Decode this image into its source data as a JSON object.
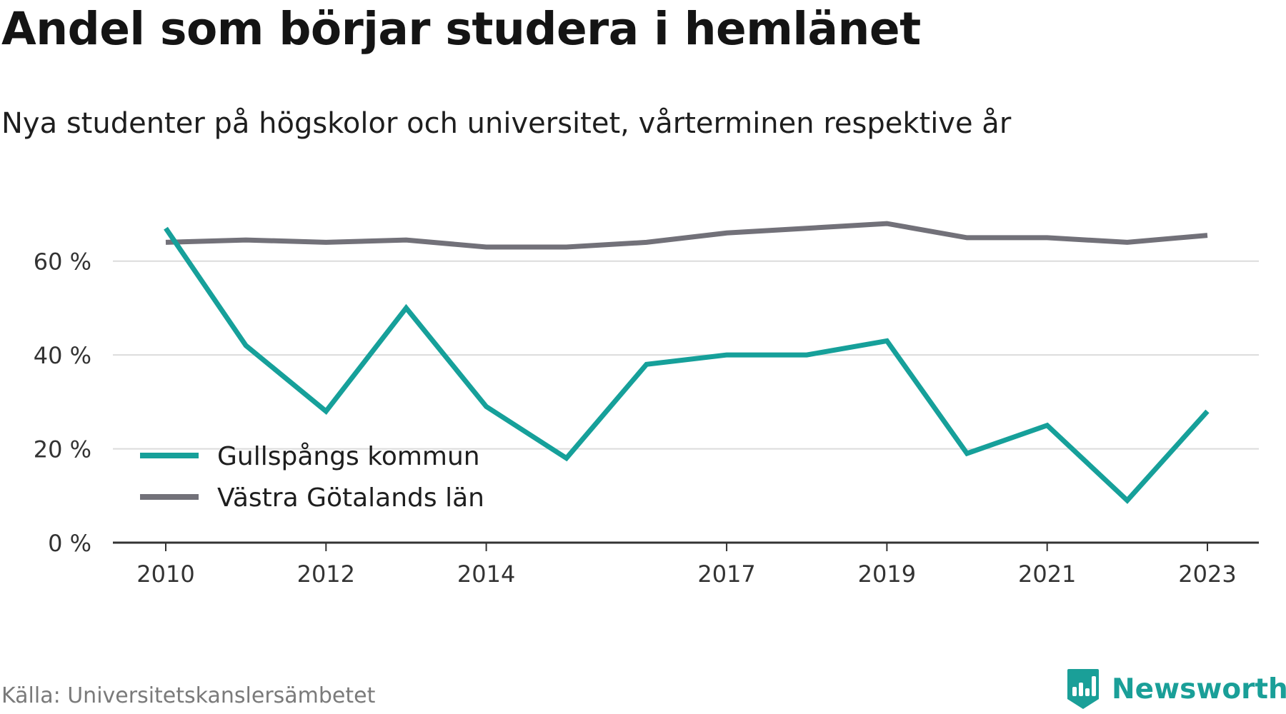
{
  "title": "Andel som börjar studera i hemlänet",
  "subtitle": "Nya studenter på högskolor och universitet, vårterminen respektive år",
  "source": "Källa: Universitetskanslersämbetet",
  "brand": {
    "name": "Newsworthy",
    "logo_icon": "newsworthy-logo-icon",
    "color": "#1a9f98"
  },
  "chart_data": {
    "type": "line",
    "x": [
      2010,
      2011,
      2012,
      2013,
      2014,
      2015,
      2016,
      2017,
      2018,
      2019,
      2020,
      2021,
      2022,
      2023
    ],
    "x_tick_values": [
      2010,
      2012,
      2014,
      2017,
      2019,
      2021,
      2023
    ],
    "x_tick_labels": [
      "2010",
      "2012",
      "2014",
      "2017",
      "2019",
      "2021",
      "2023"
    ],
    "y_ticks": [
      0,
      20,
      40,
      60
    ],
    "y_tick_labels": [
      "0 %",
      "20 %",
      "40 %",
      "60 %"
    ],
    "ylim": [
      0,
      70
    ],
    "grid": true,
    "legend_position": "bottom-left",
    "series": [
      {
        "name": "Gullspångs kommun",
        "color": "#16a09a",
        "values": [
          67,
          42,
          28,
          50,
          29,
          18,
          38,
          40,
          40,
          43,
          19,
          25,
          9,
          28
        ]
      },
      {
        "name": "Västra Götalands län",
        "color": "#727179",
        "values": [
          64,
          64.5,
          64,
          64.5,
          63,
          63,
          64,
          66,
          67,
          68,
          65,
          65,
          64,
          65.5
        ]
      }
    ]
  }
}
